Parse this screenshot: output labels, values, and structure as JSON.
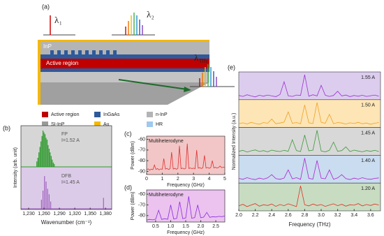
{
  "diagram": {
    "panel": "(a)",
    "lambdas": [
      {
        "symbol": "λ",
        "sub": "1"
      },
      {
        "symbol": "λ",
        "sub": "2"
      },
      {
        "symbol": "λ",
        "sub": "THz"
      }
    ],
    "layers": {
      "top": "InP",
      "active": "Active region"
    },
    "legend": [
      {
        "label": "Active region",
        "color": "#c00000"
      },
      {
        "label": "InGaAs",
        "color": "#2e5a9c"
      },
      {
        "label": "n-InP",
        "color": "#b4b4b4"
      },
      {
        "label": "SI-InP",
        "color": "#9a9a9a"
      },
      {
        "label": "Au",
        "color": "#f5b800"
      },
      {
        "label": "HR",
        "color": "#9fc9ee"
      }
    ]
  },
  "chart_data": [
    {
      "type": "stem",
      "panel": "(b)",
      "xlabel": "Wavenumber (cm⁻¹)",
      "ylabel": "Intensity (arb. unit)",
      "xlim": [
        1215,
        1392
      ],
      "xticks": [
        {
          "value": 1230,
          "label": "1,230"
        },
        {
          "value": 1260,
          "label": "1,260"
        },
        {
          "value": 1290,
          "label": "1,290"
        },
        {
          "value": 1320,
          "label": "1,320"
        },
        {
          "value": 1350,
          "label": "1,350"
        },
        {
          "value": 1380,
          "label": "1,380"
        }
      ],
      "series": [
        {
          "name": "FP",
          "current": "I=1.52 A",
          "color": "#2e9a2e",
          "background": "#d6d6d6",
          "x": [
            1246,
            1248,
            1250,
            1252,
            1254,
            1256,
            1258,
            1260,
            1262,
            1264,
            1266,
            1268,
            1270,
            1272,
            1274,
            1276,
            1278,
            1280
          ],
          "values": [
            0.15,
            0.25,
            0.4,
            0.55,
            0.7,
            0.85,
            1.0,
            0.95,
            0.9,
            0.8,
            0.75,
            0.6,
            0.5,
            0.4,
            0.3,
            0.2,
            0.12,
            0.08
          ]
        },
        {
          "name": "DFB",
          "current": "I=1.45 A",
          "color": "#a060c0",
          "background": "#dccbe8",
          "x": [
            1255,
            1258,
            1261,
            1264,
            1267,
            1270,
            1273,
            1376
          ],
          "values": [
            0.25,
            0.5,
            0.9,
            0.75,
            0.55,
            0.4,
            0.2,
            0.3
          ]
        }
      ]
    },
    {
      "type": "line",
      "panel": "(c)",
      "title": "Multiheterodyne",
      "xlabel": "Frequency (GHz)",
      "ylabel": "Power (dBm)",
      "color": "#e03030",
      "background": "#f2c6c6",
      "xlim": [
        0,
        5
      ],
      "xticks": [
        0,
        1,
        2,
        3,
        4,
        5
      ],
      "ylim": [
        -93,
        -57
      ],
      "yticks": [
        -60,
        -70,
        -80,
        -90
      ],
      "x": [
        0,
        0.1,
        0.2,
        0.3,
        0.4,
        0.5,
        0.6,
        0.7,
        0.8,
        0.9,
        1,
        1.1,
        1.2,
        1.3,
        1.4,
        1.5,
        1.6,
        1.7,
        1.8,
        1.9,
        2,
        2.1,
        2.2,
        2.3,
        2.4,
        2.5,
        2.6,
        2.7,
        2.8,
        2.9,
        3,
        3.1,
        3.2,
        3.3,
        3.4,
        3.5,
        3.6,
        3.7,
        3.8,
        3.9,
        4,
        4.1,
        4.2,
        4.3,
        4.4,
        4.5,
        4.6,
        4.7,
        4.8,
        4.9,
        5
      ],
      "values": [
        -88.5,
        -87.6,
        -88.9,
        -87.9,
        -88.4,
        -84,
        -88.2,
        -87.4,
        -88.6,
        -87.7,
        -88.1,
        -78,
        -87.9,
        -87.2,
        -88.3,
        -87.5,
        -72,
        -87.8,
        -87.1,
        -88.0,
        -87.3,
        -66,
        -87.6,
        -86.9,
        -87.8,
        -87.2,
        -64,
        -87.4,
        -86.8,
        -87.5,
        -86.9,
        -87.6,
        -70,
        -87.0,
        -86.5,
        -87.3,
        -86.7,
        -75,
        -86.9,
        -86.3,
        -87.1,
        -86.5,
        -80,
        -86.8,
        -86.2,
        -86.9,
        -86.4,
        -85,
        -86.6,
        -86.0,
        -86.5
      ]
    },
    {
      "type": "line",
      "panel": "(d)",
      "title": "Multiheterodyne",
      "xlabel": "Frequency (GHz)",
      "ylabel": "Power (dBm)",
      "color": "#8a2be2",
      "background": "#ebc3ee",
      "xlim": [
        0.2,
        2.8
      ],
      "xticks": [
        0.5,
        {
          "value": 1,
          "label": "1.0"
        },
        1.5,
        {
          "value": 2,
          "label": "2.0"
        },
        2.5
      ],
      "ylim": [
        -86,
        -56
      ],
      "yticks": [
        -60,
        -70,
        -80
      ],
      "x": [
        0.2,
        0.3,
        0.4,
        0.5,
        0.6,
        0.7,
        0.8,
        0.9,
        1,
        1.1,
        1.2,
        1.3,
        1.4,
        1.5,
        1.6,
        1.7,
        1.8,
        1.9,
        2,
        2.1,
        2.2,
        2.3,
        2.4,
        2.5,
        2.6,
        2.7,
        2.8
      ],
      "values": [
        -84.2,
        -83.5,
        -84.0,
        -83.3,
        -75,
        -83.6,
        -82.9,
        -83.4,
        -70,
        -83.1,
        -82.6,
        -67,
        -82.8,
        -82.2,
        -62,
        -82.4,
        -81.8,
        -70,
        -82.0,
        -81.4,
        -77,
        -81.6,
        -81.0,
        -81.3,
        -80.7,
        -81.0,
        -80.4
      ]
    },
    {
      "type": "stacked-line",
      "panel": "(e)",
      "xlabel": "Frequency (THz)",
      "ylabel": "Normalized Intensity (a.u.)",
      "xlim": [
        2.0,
        3.72
      ],
      "xticks": [
        {
          "value": 2,
          "label": "2.0"
        },
        2.2,
        2.4,
        2.6,
        2.8,
        {
          "value": 3,
          "label": "3.0"
        },
        3.2,
        3.4,
        3.6
      ],
      "x": [
        2.0,
        2.05,
        2.1,
        2.15,
        2.2,
        2.25,
        2.3,
        2.35,
        2.4,
        2.45,
        2.5,
        2.55,
        2.6,
        2.65,
        2.7,
        2.75,
        2.8,
        2.85,
        2.9,
        2.95,
        3.0,
        3.05,
        3.1,
        3.15,
        3.2,
        3.25,
        3.3,
        3.35,
        3.4,
        3.45,
        3.5,
        3.55,
        3.6,
        3.65,
        3.7
      ],
      "series": [
        {
          "name": "1.55 A",
          "color": "#9b30d0",
          "background": "#dccdef",
          "values": [
            0.12,
            0.08,
            0.15,
            0.1,
            0.06,
            0.13,
            0.09,
            0.14,
            0.1,
            0.07,
            0.16,
            0.7,
            0.11,
            0.08,
            0.14,
            0.12,
            1.0,
            0.09,
            0.15,
            0.1,
            0.55,
            0.13,
            0.08,
            0.12,
            0.3,
            0.1,
            0.14,
            0.07,
            0.12,
            0.09,
            0.13,
            0.08,
            0.11,
            0.14,
            0.09
          ]
        },
        {
          "name": "1.50 A",
          "color": "#f0a020",
          "background": "#fde5b6",
          "values": [
            0.1,
            0.14,
            0.09,
            0.16,
            0.11,
            0.08,
            0.15,
            0.12,
            0.3,
            0.1,
            0.13,
            0.17,
            0.6,
            0.12,
            0.15,
            0.1,
            0.9,
            0.14,
            0.11,
            1.0,
            0.16,
            0.12,
            0.5,
            0.1,
            0.15,
            0.13,
            0.09,
            0.14,
            0.11,
            0.16,
            0.1,
            0.13,
            0.08,
            0.12,
            0.15
          ]
        },
        {
          "name": "1.45 A",
          "color": "#3a9a3a",
          "background": "#d8d8d8",
          "values": [
            0.11,
            0.15,
            0.08,
            0.13,
            0.17,
            0.1,
            0.14,
            0.09,
            0.16,
            0.12,
            0.1,
            0.15,
            0.11,
            0.6,
            0.14,
            0.1,
            0.8,
            0.13,
            0.16,
            1.0,
            0.12,
            0.09,
            0.15,
            0.5,
            0.11,
            0.14,
            0.3,
            0.1,
            0.16,
            0.12,
            0.09,
            0.14,
            0.11,
            0.15,
            0.1
          ]
        },
        {
          "name": "1.40 A",
          "color": "#b020d0",
          "background": "#c9dcf0",
          "values": [
            0.14,
            0.1,
            0.17,
            0.12,
            0.09,
            0.15,
            0.11,
            0.16,
            0.3,
            0.13,
            0.1,
            0.15,
            0.5,
            0.12,
            0.17,
            0.1,
            1.0,
            0.14,
            0.11,
            0.9,
            0.15,
            0.12,
            0.5,
            0.1,
            0.16,
            0.3,
            0.13,
            0.09,
            0.15,
            0.11,
            0.17,
            0.12,
            0.1,
            0.14,
            0.16
          ]
        },
        {
          "name": "1.20 A",
          "color": "#e03020",
          "background": "#c8dcc2",
          "values": [
            0.15,
            0.22,
            0.12,
            0.19,
            0.25,
            0.14,
            0.2,
            0.17,
            0.23,
            0.13,
            0.21,
            0.16,
            0.24,
            0.18,
            0.12,
            1.0,
            0.2,
            0.15,
            0.23,
            0.17,
            0.21,
            0.13,
            0.19,
            0.24,
            0.16,
            0.22,
            0.14,
            0.2,
            0.18,
            0.25,
            0.15,
            0.21,
            0.17,
            0.23,
            0.19
          ]
        }
      ]
    }
  ]
}
